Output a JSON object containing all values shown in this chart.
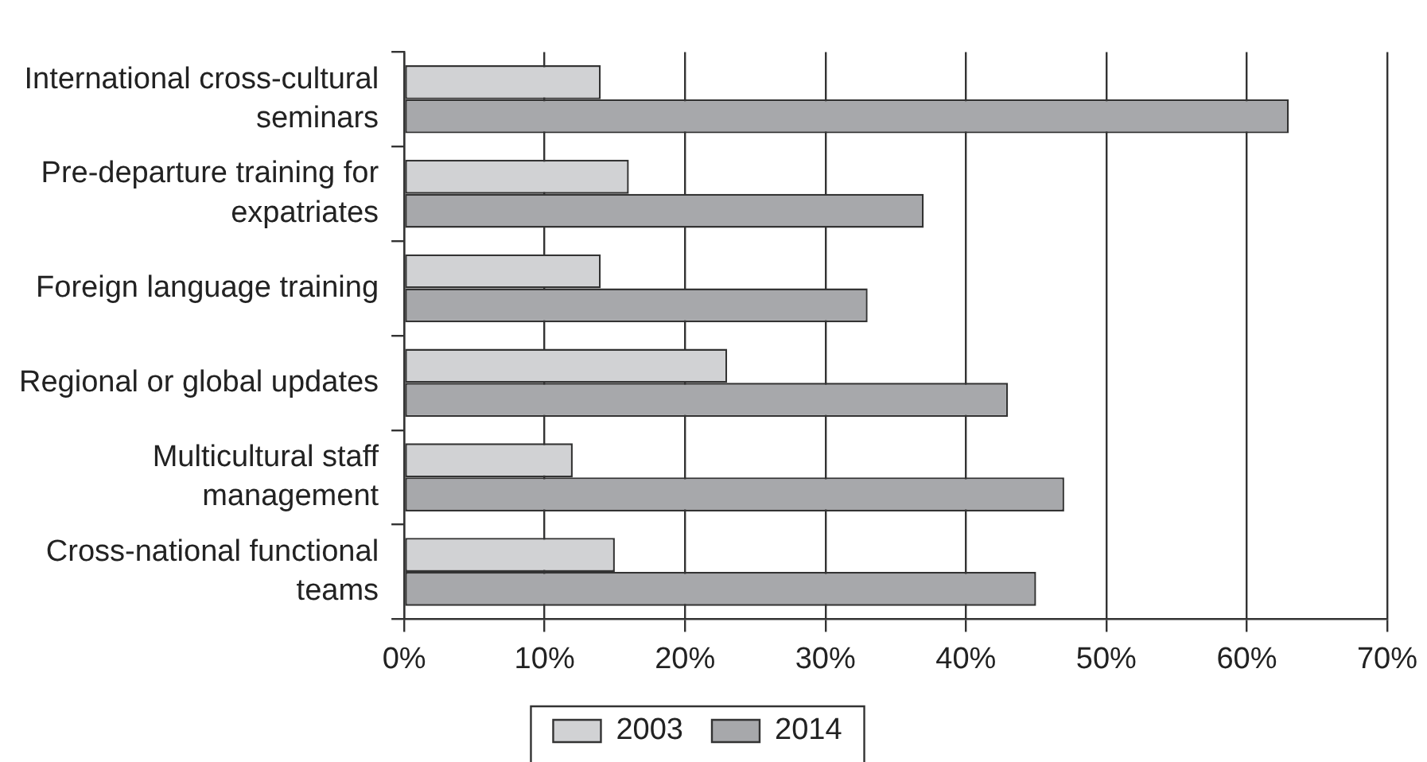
{
  "chart_data": {
    "type": "bar",
    "orientation": "horizontal",
    "categories": [
      "International cross-cultural seminars",
      "Pre-departure training for expatriates",
      "Foreign language training",
      "Regional or global updates",
      "Multicultural staff management",
      "Cross-national functional teams"
    ],
    "series": [
      {
        "name": "2003",
        "color": "#d1d2d4",
        "values": [
          14,
          16,
          14,
          23,
          12,
          15
        ]
      },
      {
        "name": "2014",
        "color": "#a7a8ab",
        "values": [
          63,
          37,
          33,
          43,
          47,
          45
        ]
      }
    ],
    "xlim": [
      0,
      70
    ],
    "xticks": [
      {
        "value": 0,
        "label": "0%"
      },
      {
        "value": 10,
        "label": "10%"
      },
      {
        "value": 20,
        "label": "20%"
      },
      {
        "value": 30,
        "label": "30%"
      },
      {
        "value": 40,
        "label": "40%"
      },
      {
        "value": 50,
        "label": "50%"
      },
      {
        "value": 60,
        "label": "60%"
      },
      {
        "value": 70,
        "label": "70%"
      }
    ],
    "grid": "x",
    "legend": "bottom"
  }
}
